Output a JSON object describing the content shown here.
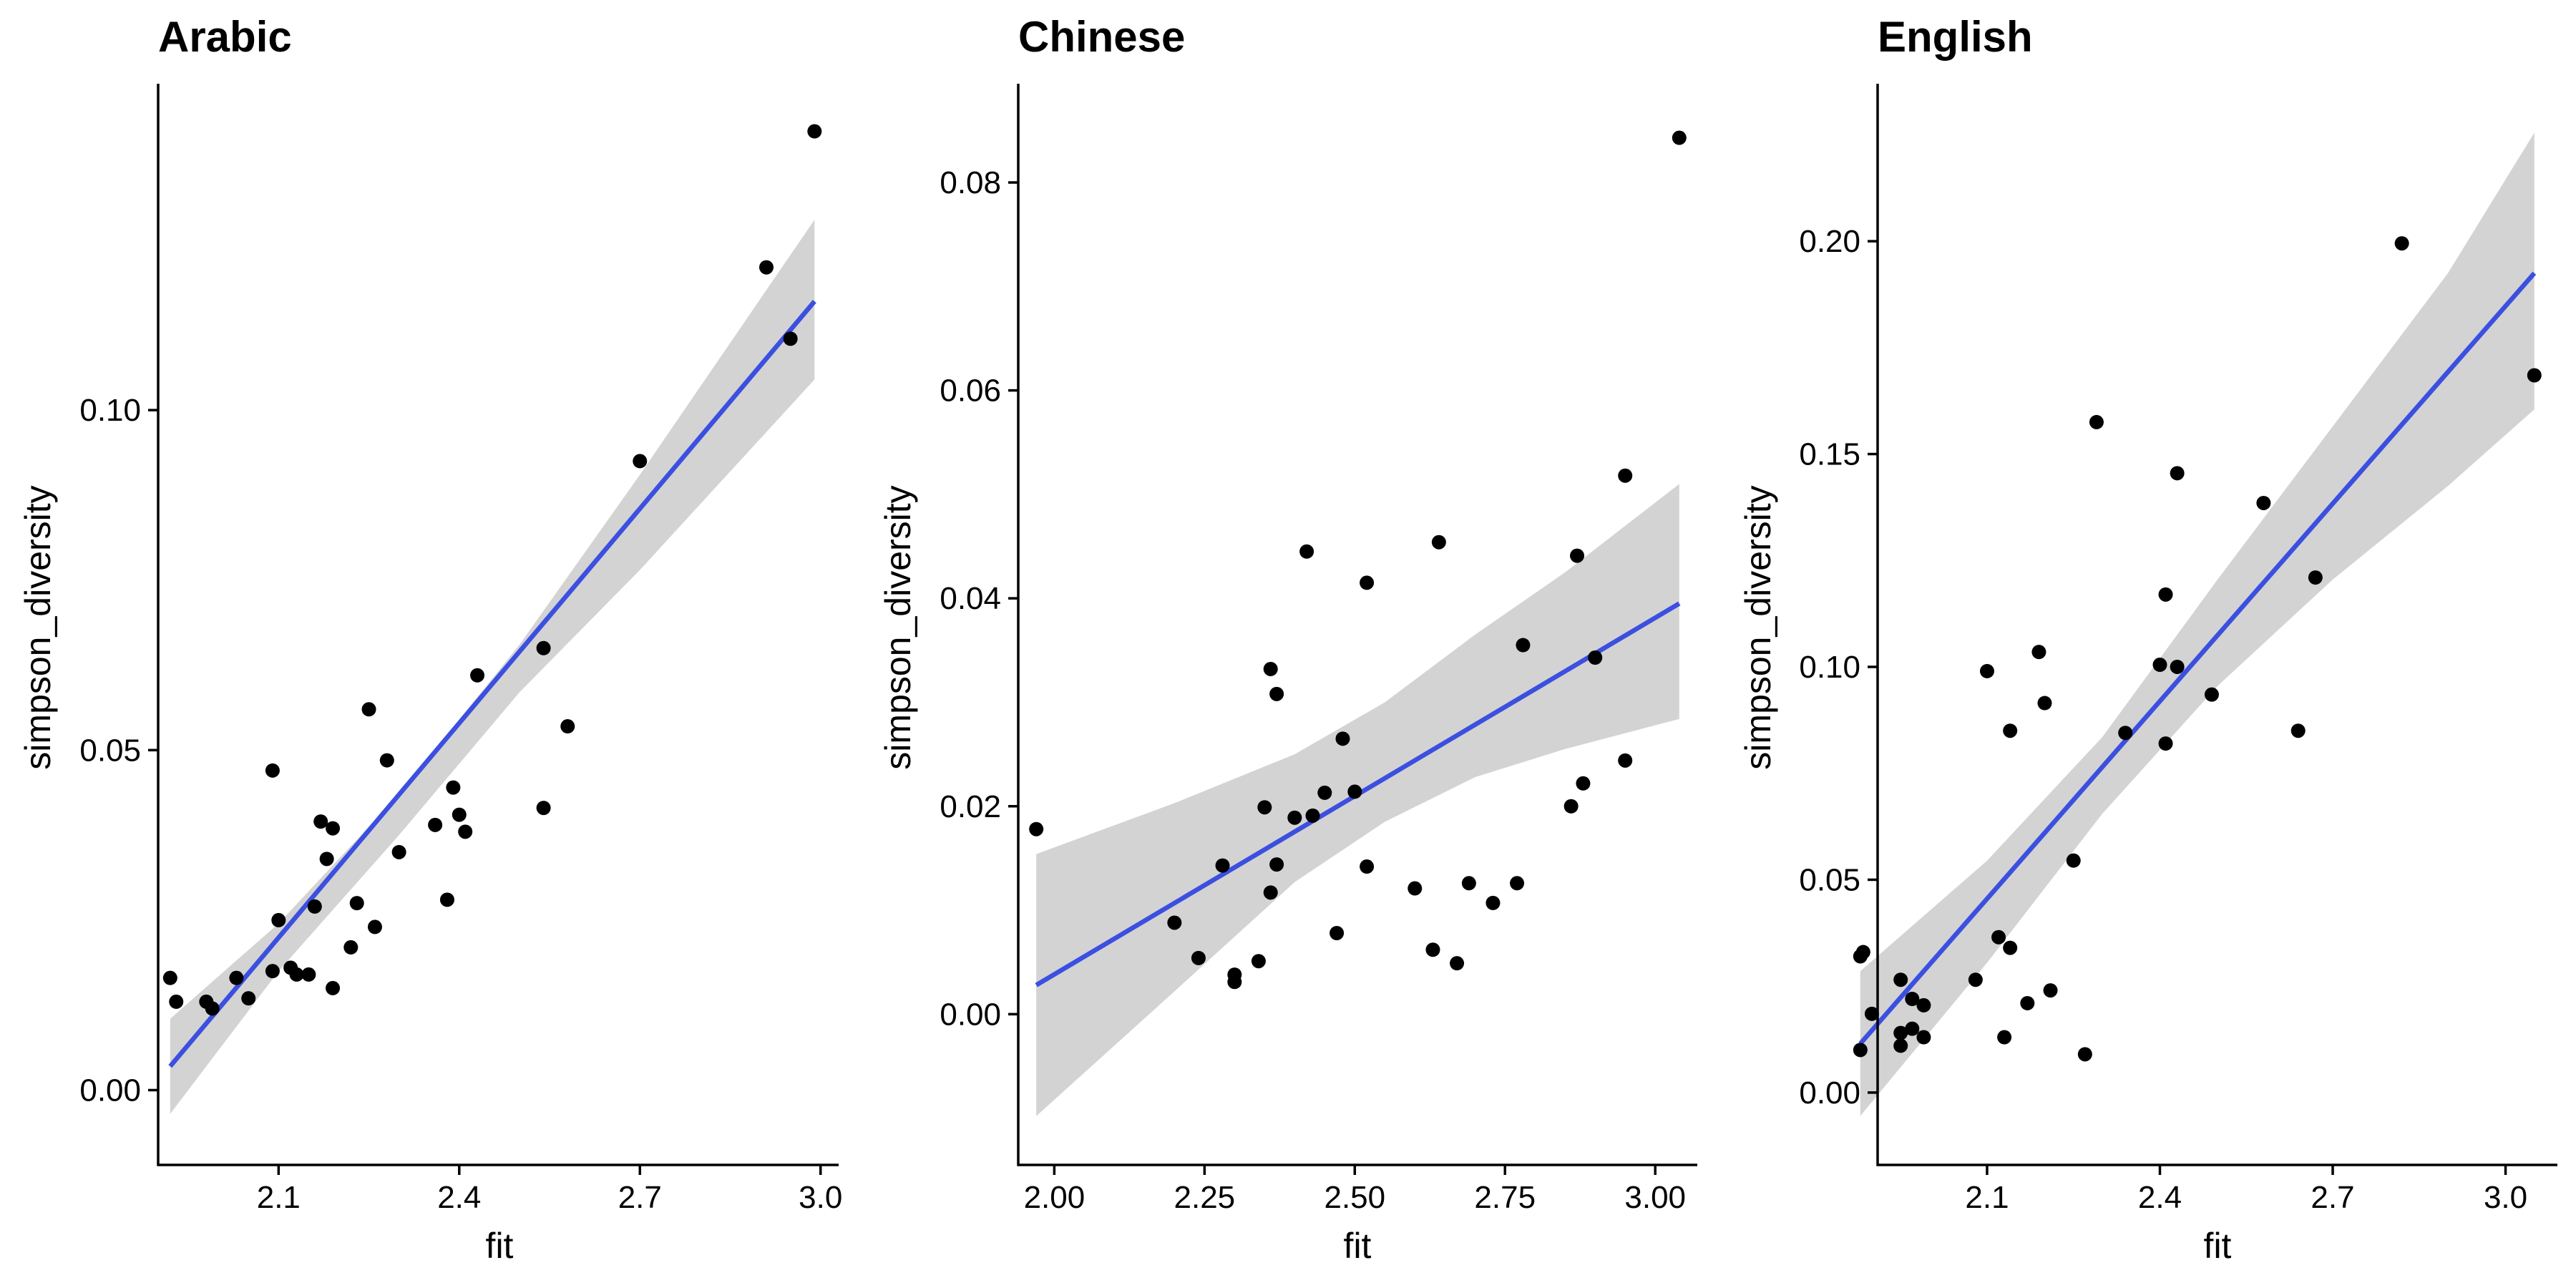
{
  "chart_data": [
    {
      "type": "scatter",
      "title": "Arabic",
      "xlabel": "fit",
      "ylabel": "simpson_diversity",
      "xlim": [
        1.9,
        3.03
      ],
      "ylim": [
        -0.011,
        0.148
      ],
      "xticks": [
        2.1,
        2.4,
        2.7,
        3.0
      ],
      "xtick_labels": [
        "2.1",
        "2.4",
        "2.7",
        "3.0"
      ],
      "yticks": [
        0.0,
        0.05,
        0.1
      ],
      "ytick_labels": [
        "0.00",
        "0.05",
        "0.10"
      ],
      "grid": false,
      "line_color": "#3b4fe0",
      "band_color": "#d3d3d3",
      "point_color": "#000000",
      "fit": {
        "x0": 1.92,
        "y0": 0.0035,
        "x1": 2.99,
        "y1": 0.116
      },
      "band": [
        {
          "x": 1.92,
          "lo": -0.0035,
          "hi": 0.0105
        },
        {
          "x": 2.1,
          "lo": 0.0175,
          "hi": 0.0245
        },
        {
          "x": 2.3,
          "lo": 0.0375,
          "hi": 0.0435
        },
        {
          "x": 2.5,
          "lo": 0.0585,
          "hi": 0.0655
        },
        {
          "x": 2.7,
          "lo": 0.0765,
          "hi": 0.0905
        },
        {
          "x": 2.99,
          "lo": 0.1045,
          "hi": 0.128
        }
      ],
      "points": [
        {
          "x": 1.92,
          "y": 0.0165
        },
        {
          "x": 1.93,
          "y": 0.013
        },
        {
          "x": 1.98,
          "y": 0.013
        },
        {
          "x": 1.99,
          "y": 0.012
        },
        {
          "x": 2.03,
          "y": 0.0165
        },
        {
          "x": 2.05,
          "y": 0.0135
        },
        {
          "x": 2.09,
          "y": 0.047
        },
        {
          "x": 2.09,
          "y": 0.0175
        },
        {
          "x": 2.1,
          "y": 0.025
        },
        {
          "x": 2.12,
          "y": 0.018
        },
        {
          "x": 2.13,
          "y": 0.017
        },
        {
          "x": 2.15,
          "y": 0.017
        },
        {
          "x": 2.16,
          "y": 0.027
        },
        {
          "x": 2.17,
          "y": 0.0395
        },
        {
          "x": 2.18,
          "y": 0.034
        },
        {
          "x": 2.19,
          "y": 0.0385
        },
        {
          "x": 2.19,
          "y": 0.015
        },
        {
          "x": 2.22,
          "y": 0.021
        },
        {
          "x": 2.23,
          "y": 0.0275
        },
        {
          "x": 2.25,
          "y": 0.056
        },
        {
          "x": 2.26,
          "y": 0.024
        },
        {
          "x": 2.28,
          "y": 0.0485
        },
        {
          "x": 2.3,
          "y": 0.035
        },
        {
          "x": 2.36,
          "y": 0.039
        },
        {
          "x": 2.38,
          "y": 0.028
        },
        {
          "x": 2.39,
          "y": 0.0445
        },
        {
          "x": 2.4,
          "y": 0.0405
        },
        {
          "x": 2.41,
          "y": 0.038
        },
        {
          "x": 2.43,
          "y": 0.061
        },
        {
          "x": 2.54,
          "y": 0.065
        },
        {
          "x": 2.54,
          "y": 0.0415
        },
        {
          "x": 2.58,
          "y": 0.0535
        },
        {
          "x": 2.7,
          "y": 0.0925
        },
        {
          "x": 2.91,
          "y": 0.121
        },
        {
          "x": 2.95,
          "y": 0.1105
        },
        {
          "x": 2.99,
          "y": 0.141
        }
      ]
    },
    {
      "type": "scatter",
      "title": "Chinese",
      "xlabel": "fit",
      "ylabel": "simpson_diversity",
      "xlim": [
        1.94,
        3.07
      ],
      "ylim": [
        -0.0145,
        0.0895
      ],
      "xticks": [
        2.0,
        2.25,
        2.5,
        2.75,
        3.0
      ],
      "xtick_labels": [
        "2.00",
        "2.25",
        "2.50",
        "2.75",
        "3.00"
      ],
      "yticks": [
        0.0,
        0.02,
        0.04,
        0.06,
        0.08
      ],
      "ytick_labels": [
        "0.00",
        "0.02",
        "0.04",
        "0.06",
        "0.08"
      ],
      "grid": false,
      "line_color": "#3b4fe0",
      "band_color": "#d3d3d3",
      "point_color": "#000000",
      "fit": {
        "x0": 1.97,
        "y0": 0.0028,
        "x1": 3.04,
        "y1": 0.0395
      },
      "band": [
        {
          "x": 1.97,
          "lo": -0.0098,
          "hi": 0.0154
        },
        {
          "x": 2.2,
          "lo": 0.0022,
          "hi": 0.0203
        },
        {
          "x": 2.4,
          "lo": 0.0127,
          "hi": 0.025
        },
        {
          "x": 2.55,
          "lo": 0.0185,
          "hi": 0.03
        },
        {
          "x": 2.7,
          "lo": 0.0228,
          "hi": 0.0365
        },
        {
          "x": 2.85,
          "lo": 0.0255,
          "hi": 0.0425
        },
        {
          "x": 3.04,
          "lo": 0.0284,
          "hi": 0.051
        }
      ],
      "points": [
        {
          "x": 1.97,
          "y": 0.0178
        },
        {
          "x": 2.2,
          "y": 0.0088
        },
        {
          "x": 2.24,
          "y": 0.0054
        },
        {
          "x": 2.28,
          "y": 0.0143
        },
        {
          "x": 2.3,
          "y": 0.0038
        },
        {
          "x": 2.3,
          "y": 0.0031
        },
        {
          "x": 2.34,
          "y": 0.0051
        },
        {
          "x": 2.35,
          "y": 0.0199
        },
        {
          "x": 2.36,
          "y": 0.0117
        },
        {
          "x": 2.36,
          "y": 0.0332
        },
        {
          "x": 2.37,
          "y": 0.0308
        },
        {
          "x": 2.37,
          "y": 0.0144
        },
        {
          "x": 2.4,
          "y": 0.0189
        },
        {
          "x": 2.42,
          "y": 0.0445
        },
        {
          "x": 2.43,
          "y": 0.0191
        },
        {
          "x": 2.45,
          "y": 0.0213
        },
        {
          "x": 2.47,
          "y": 0.0078
        },
        {
          "x": 2.48,
          "y": 0.0265
        },
        {
          "x": 2.5,
          "y": 0.0214
        },
        {
          "x": 2.52,
          "y": 0.0142
        },
        {
          "x": 2.52,
          "y": 0.0415
        },
        {
          "x": 2.6,
          "y": 0.0121
        },
        {
          "x": 2.63,
          "y": 0.0062
        },
        {
          "x": 2.64,
          "y": 0.0454
        },
        {
          "x": 2.67,
          "y": 0.0049
        },
        {
          "x": 2.69,
          "y": 0.0126
        },
        {
          "x": 2.73,
          "y": 0.0107
        },
        {
          "x": 2.77,
          "y": 0.0126
        },
        {
          "x": 2.78,
          "y": 0.0355
        },
        {
          "x": 2.86,
          "y": 0.02
        },
        {
          "x": 2.87,
          "y": 0.0441
        },
        {
          "x": 2.88,
          "y": 0.0222
        },
        {
          "x": 2.9,
          "y": 0.0343
        },
        {
          "x": 2.95,
          "y": 0.0244
        },
        {
          "x": 2.95,
          "y": 0.0518
        },
        {
          "x": 3.04,
          "y": 0.0843
        }
      ]
    },
    {
      "type": "scatter",
      "title": "English",
      "xlabel": "fit",
      "ylabel": "simpson_diversity",
      "xlim": [
        1.91,
        3.09
      ],
      "ylim": [
        -0.017,
        0.237
      ],
      "xticks": [
        2.1,
        2.4,
        2.7,
        3.0
      ],
      "xtick_labels": [
        "2.1",
        "2.4",
        "2.7",
        "3.0"
      ],
      "yticks": [
        0.0,
        0.05,
        0.1,
        0.15,
        0.2
      ],
      "ytick_labels": [
        "0.00",
        "0.05",
        "0.10",
        "0.15",
        "0.20"
      ],
      "grid": false,
      "line_color": "#3b4fe0",
      "band_color": "#d3d3d3",
      "point_color": "#000000",
      "fit": {
        "x0": 1.88,
        "y0": 0.0115,
        "x1": 3.05,
        "y1": 0.1925
      },
      "band": [
        {
          "x": 1.88,
          "lo": -0.0055,
          "hi": 0.0285
        },
        {
          "x": 2.1,
          "lo": 0.0305,
          "hi": 0.0545
        },
        {
          "x": 2.3,
          "lo": 0.0655,
          "hi": 0.0835
        },
        {
          "x": 2.5,
          "lo": 0.0955,
          "hi": 0.1205
        },
        {
          "x": 2.7,
          "lo": 0.1205,
          "hi": 0.1565
        },
        {
          "x": 2.9,
          "lo": 0.1425,
          "hi": 0.1925
        },
        {
          "x": 3.05,
          "lo": 0.1605,
          "hi": 0.2255
        }
      ],
      "points": [
        {
          "x": 1.88,
          "y": 0.032
        },
        {
          "x": 1.885,
          "y": 0.033
        },
        {
          "x": 1.88,
          "y": 0.01
        },
        {
          "x": 1.9,
          "y": 0.0185
        },
        {
          "x": 1.95,
          "y": 0.0265
        },
        {
          "x": 1.95,
          "y": 0.014
        },
        {
          "x": 1.95,
          "y": 0.011
        },
        {
          "x": 1.97,
          "y": 0.022
        },
        {
          "x": 1.97,
          "y": 0.015
        },
        {
          "x": 1.99,
          "y": 0.0205
        },
        {
          "x": 1.99,
          "y": 0.013
        },
        {
          "x": 2.08,
          "y": 0.0265
        },
        {
          "x": 2.1,
          "y": 0.099
        },
        {
          "x": 2.12,
          "y": 0.0365
        },
        {
          "x": 2.13,
          "y": 0.013
        },
        {
          "x": 2.14,
          "y": 0.085
        },
        {
          "x": 2.14,
          "y": 0.034
        },
        {
          "x": 2.17,
          "y": 0.021
        },
        {
          "x": 2.19,
          "y": 0.1035
        },
        {
          "x": 2.2,
          "y": 0.0915
        },
        {
          "x": 2.21,
          "y": 0.024
        },
        {
          "x": 2.25,
          "y": 0.0545
        },
        {
          "x": 2.27,
          "y": 0.009
        },
        {
          "x": 2.29,
          "y": 0.1575
        },
        {
          "x": 2.34,
          "y": 0.0845
        },
        {
          "x": 2.4,
          "y": 0.1005
        },
        {
          "x": 2.41,
          "y": 0.117
        },
        {
          "x": 2.41,
          "y": 0.082
        },
        {
          "x": 2.43,
          "y": 0.1
        },
        {
          "x": 2.43,
          "y": 0.1455
        },
        {
          "x": 2.49,
          "y": 0.0935
        },
        {
          "x": 2.58,
          "y": 0.1385
        },
        {
          "x": 2.64,
          "y": 0.085
        },
        {
          "x": 2.67,
          "y": 0.121
        },
        {
          "x": 2.82,
          "y": 0.1995
        },
        {
          "x": 3.05,
          "y": 0.1685
        }
      ]
    }
  ]
}
